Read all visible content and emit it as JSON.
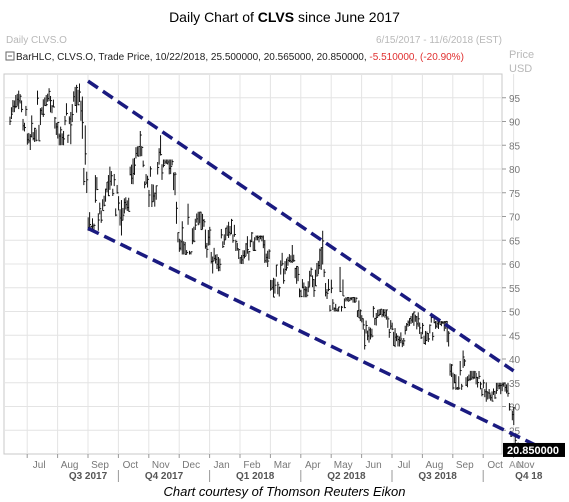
{
  "title": {
    "prefix": "Daily Chart of ",
    "ticker": "CLVS",
    "suffix": " since June 2017"
  },
  "header": {
    "symbol": "Daily CLVS.O",
    "date_range": "6/15/2017 - 11/6/2018 (EST)",
    "price_label": "Price",
    "currency": "USD",
    "series_info": "BarHLC, CLVS.O, Trade Price, 10/22/2018, 25.500000, 20.565000, 20.850000, ",
    "change": "-5.510000, (-20.90%)",
    "change_color": "#e03030"
  },
  "footer": "Chart courtesy of Thomson Reuters Eikon",
  "chart_data": {
    "type": "bar",
    "series_name": "CLVS.O",
    "x_tick_labels": [
      "Jul",
      "Aug",
      "Sep",
      "Oct",
      "Nov",
      "Dec",
      "Jan",
      "Feb",
      "Mar",
      "Apr",
      "May",
      "Jun",
      "Jul",
      "Aug",
      "Sep",
      "Oct",
      "Nov"
    ],
    "quarter_labels": [
      "Q3 2017",
      "Q4 2017",
      "Q1 2018",
      "Q2 2018",
      "Q3 2018",
      "Q4 18"
    ],
    "y_ticks": [
      25,
      30,
      35,
      40,
      45,
      50,
      55,
      60,
      65,
      70,
      75,
      80,
      85,
      90,
      95
    ],
    "ylim": [
      20,
      100
    ],
    "last_price_label": "20.850000",
    "auto_label": "Auto",
    "price_bar_color": "#111111",
    "trendline_color": "#1a1a80",
    "grid": true,
    "trendlines": [
      {
        "name": "upper-channel",
        "start": {
          "month": "2017-08",
          "price": 98.5
        },
        "end": {
          "month": "2018-10",
          "price": 37.5
        }
      },
      {
        "name": "lower-channel",
        "start": {
          "month": "2017-08",
          "price": 67.5
        },
        "end": {
          "month": "2018-11",
          "price": 21
        }
      }
    ],
    "monthly_hlc": [
      {
        "month": "2017-06",
        "high": 96.5,
        "low": 84.0,
        "close": 91.0
      },
      {
        "month": "2017-07",
        "high": 97.0,
        "low": 85.0,
        "close": 90.0
      },
      {
        "month": "2017-08",
        "high": 98.0,
        "low": 67.0,
        "close": 70.0
      },
      {
        "month": "2017-09",
        "high": 80.5,
        "low": 66.0,
        "close": 78.0
      },
      {
        "month": "2017-10",
        "high": 88.0,
        "low": 72.0,
        "close": 80.0
      },
      {
        "month": "2017-11",
        "high": 82.0,
        "low": 62.0,
        "close": 66.0
      },
      {
        "month": "2017-12",
        "high": 71.0,
        "low": 58.0,
        "close": 64.0
      },
      {
        "month": "2018-01",
        "high": 69.5,
        "low": 60.0,
        "close": 64.0
      },
      {
        "month": "2018-02",
        "high": 66.0,
        "low": 53.0,
        "close": 58.0
      },
      {
        "month": "2018-03",
        "high": 64.0,
        "low": 53.0,
        "close": 56.0
      },
      {
        "month": "2018-04",
        "high": 67.0,
        "low": 50.0,
        "close": 52.0
      },
      {
        "month": "2018-05",
        "high": 53.0,
        "low": 42.0,
        "close": 48.0
      },
      {
        "month": "2018-06",
        "high": 50.5,
        "low": 42.5,
        "close": 46.0
      },
      {
        "month": "2018-07",
        "high": 50.0,
        "low": 43.0,
        "close": 47.0
      },
      {
        "month": "2018-08",
        "high": 48.0,
        "low": 33.5,
        "close": 35.0
      },
      {
        "month": "2018-09",
        "high": 37.5,
        "low": 31.0,
        "close": 34.0
      },
      {
        "month": "2018-10",
        "high": 35.0,
        "low": 20.6,
        "close": 20.85
      }
    ]
  }
}
